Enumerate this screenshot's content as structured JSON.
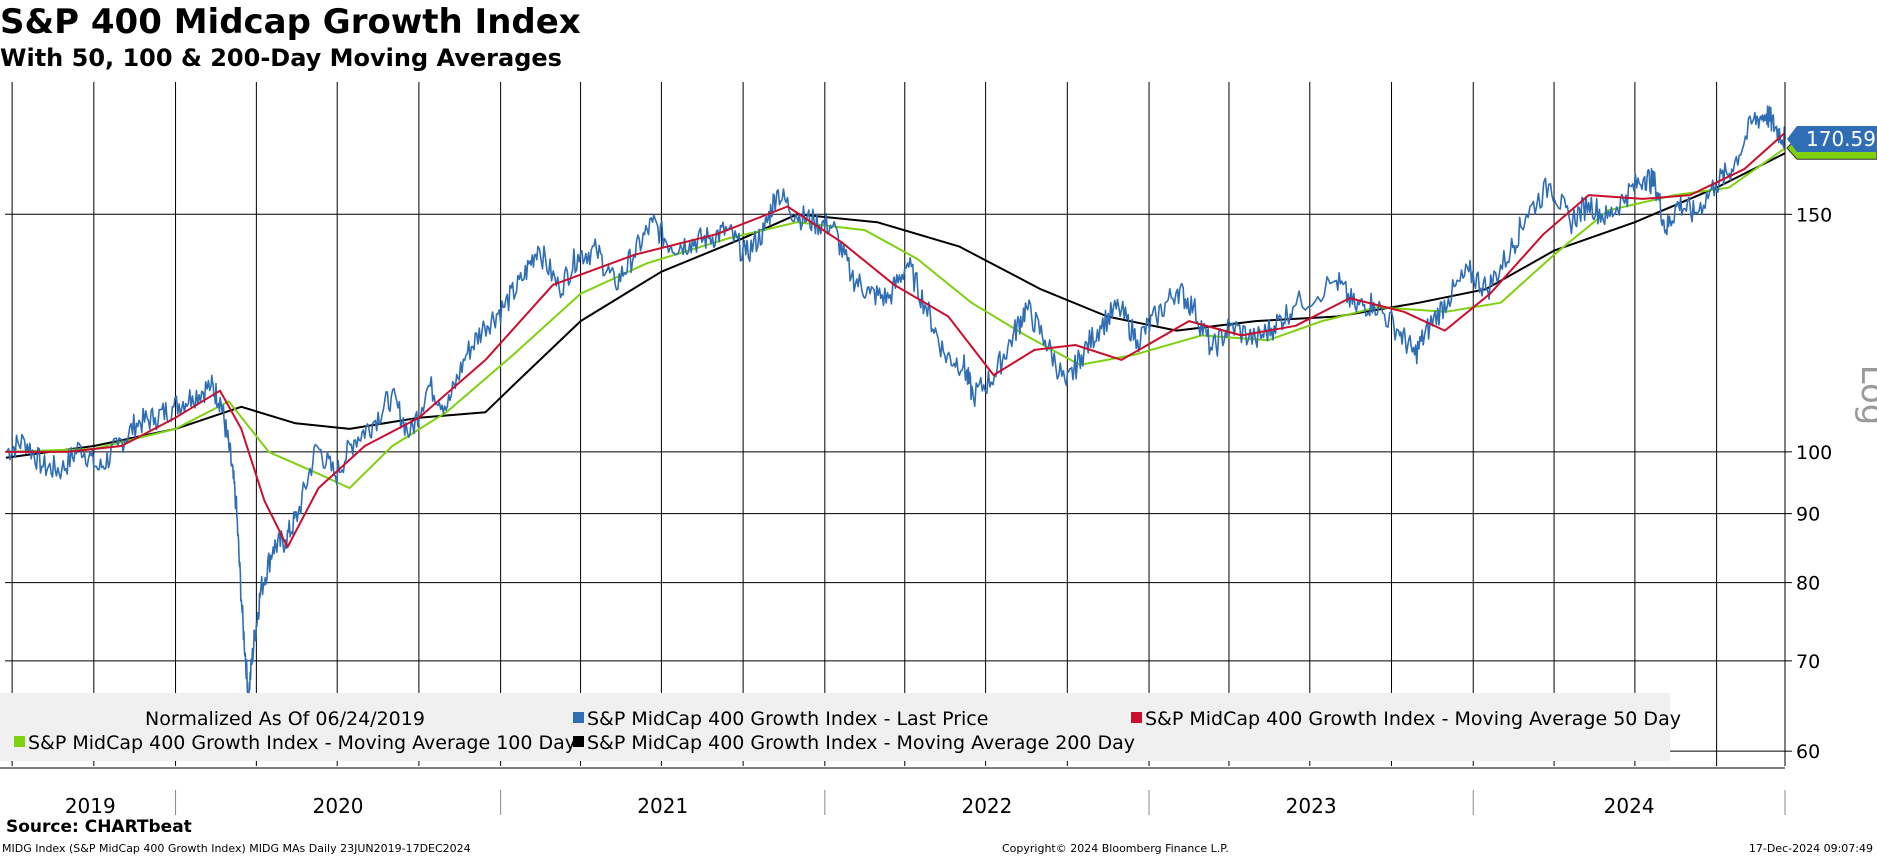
{
  "header": {
    "title": "S&P 400 Midcap Growth Index",
    "subtitle": "With 50, 100 & 200-Day Moving Averages"
  },
  "footer": {
    "source": "Source: CHARTbeat",
    "ticker_info": "MIDG Index (S&P MidCap 400 Growth Index) MIDG MAs  Daily 23JUN2019-17DEC2024",
    "copyright": "Copyright© 2024 Bloomberg Finance L.P.",
    "timestamp": "17-Dec-2024 09:07:49"
  },
  "colors": {
    "last_price": "#2f6eb5",
    "ma50": "#c8102e",
    "ma100": "#7fd10f",
    "ma200": "#000000",
    "last_value_tag": "#2f6eb5",
    "legend_bg": "#f0f0f0",
    "grid": "#000000"
  },
  "chart_data": {
    "type": "line",
    "title": "S&P 400 Midcap Growth Index",
    "subtitle": "With 50, 100 & 200-Day Moving Averages",
    "y_scale": "log",
    "ylabel": "Log",
    "ylim": [
      58.5,
      188
    ],
    "y_ticks": [
      60,
      70,
      80,
      90,
      100,
      150
    ],
    "x_range": [
      "2019-06-23",
      "2024-12-17"
    ],
    "x_tick_labels": [
      "2019",
      "2020",
      "2021",
      "2022",
      "2023",
      "2024"
    ],
    "last_value_label": "170.59",
    "legend": {
      "note": "Normalized As Of 06/24/2019",
      "entries": [
        "S&P MidCap 400 Growth Index - Last Price",
        "S&P MidCap 400 Growth Index - Moving Average 50 Day",
        "S&P MidCap 400 Growth Index - Moving Average 100 Day",
        "S&P MidCap 400 Growth Index - Moving Average 200 Day"
      ]
    },
    "series": [
      {
        "name": "S&P MidCap 400 Growth Index - Last Price",
        "color": "#2f6eb5",
        "points": [
          [
            "2019-06-24",
            100
          ],
          [
            "2019-07-15",
            102
          ],
          [
            "2019-08-05",
            97.5
          ],
          [
            "2019-08-26",
            97
          ],
          [
            "2019-09-16",
            101
          ],
          [
            "2019-10-07",
            97
          ],
          [
            "2019-10-28",
            101
          ],
          [
            "2019-11-18",
            105
          ],
          [
            "2019-12-09",
            106
          ],
          [
            "2019-12-30",
            108
          ],
          [
            "2020-01-20",
            110
          ],
          [
            "2020-02-10",
            112
          ],
          [
            "2020-02-21",
            109
          ],
          [
            "2020-03-02",
            100
          ],
          [
            "2020-03-09",
            92
          ],
          [
            "2020-03-16",
            76
          ],
          [
            "2020-03-23",
            66
          ],
          [
            "2020-03-30",
            73
          ],
          [
            "2020-04-06",
            79
          ],
          [
            "2020-04-20",
            85
          ],
          [
            "2020-05-04",
            86
          ],
          [
            "2020-05-18",
            90
          ],
          [
            "2020-06-08",
            101
          ],
          [
            "2020-06-29",
            96
          ],
          [
            "2020-07-20",
            102
          ],
          [
            "2020-08-10",
            105
          ],
          [
            "2020-08-31",
            110
          ],
          [
            "2020-09-21",
            103
          ],
          [
            "2020-10-12",
            112
          ],
          [
            "2020-11-02",
            108
          ],
          [
            "2020-11-23",
            118
          ],
          [
            "2020-12-14",
            124
          ],
          [
            "2021-01-04",
            128
          ],
          [
            "2021-01-25",
            134
          ],
          [
            "2021-02-12",
            142
          ],
          [
            "2021-03-08",
            132
          ],
          [
            "2021-03-29",
            140
          ],
          [
            "2021-04-19",
            141
          ],
          [
            "2021-05-10",
            133
          ],
          [
            "2021-05-31",
            140
          ],
          [
            "2021-06-21",
            148
          ],
          [
            "2021-07-12",
            142
          ],
          [
            "2021-08-02",
            143
          ],
          [
            "2021-08-23",
            144
          ],
          [
            "2021-09-13",
            146
          ],
          [
            "2021-10-04",
            140
          ],
          [
            "2021-10-25",
            146
          ],
          [
            "2021-11-08",
            156
          ],
          [
            "2021-11-29",
            150
          ],
          [
            "2021-12-20",
            148
          ],
          [
            "2022-01-10",
            147
          ],
          [
            "2022-01-31",
            135
          ],
          [
            "2022-02-21",
            131
          ],
          [
            "2022-03-14",
            130
          ],
          [
            "2022-04-04",
            138
          ],
          [
            "2022-04-25",
            128
          ],
          [
            "2022-05-16",
            118
          ],
          [
            "2022-06-06",
            116
          ],
          [
            "2022-06-17",
            110
          ],
          [
            "2022-07-11",
            114
          ],
          [
            "2022-08-01",
            122
          ],
          [
            "2022-08-16",
            128
          ],
          [
            "2022-09-06",
            121
          ],
          [
            "2022-09-30",
            112
          ],
          [
            "2022-10-17",
            118
          ],
          [
            "2022-11-07",
            124
          ],
          [
            "2022-11-28",
            128
          ],
          [
            "2022-12-19",
            121
          ],
          [
            "2023-01-09",
            126
          ],
          [
            "2023-02-02",
            132
          ],
          [
            "2023-02-20",
            128
          ],
          [
            "2023-03-13",
            119
          ],
          [
            "2023-04-03",
            124
          ],
          [
            "2023-05-01",
            121
          ],
          [
            "2023-05-22",
            124
          ],
          [
            "2023-06-12",
            128
          ],
          [
            "2023-07-31",
            134
          ],
          [
            "2023-08-21",
            128
          ],
          [
            "2023-09-11",
            129
          ],
          [
            "2023-10-09",
            123
          ],
          [
            "2023-10-27",
            118
          ],
          [
            "2023-11-13",
            124
          ],
          [
            "2023-12-04",
            130
          ],
          [
            "2023-12-27",
            136
          ],
          [
            "2024-01-17",
            132
          ],
          [
            "2024-02-12",
            141
          ],
          [
            "2024-03-01",
            150
          ],
          [
            "2024-03-28",
            158
          ],
          [
            "2024-04-19",
            148
          ],
          [
            "2024-05-10",
            153
          ],
          [
            "2024-05-31",
            149
          ],
          [
            "2024-06-21",
            155
          ],
          [
            "2024-07-12",
            160
          ],
          [
            "2024-07-24",
            158
          ],
          [
            "2024-08-05",
            146
          ],
          [
            "2024-08-19",
            153
          ],
          [
            "2024-09-06",
            150
          ],
          [
            "2024-09-30",
            158
          ],
          [
            "2024-10-18",
            162
          ],
          [
            "2024-11-11",
            176
          ],
          [
            "2024-11-26",
            178
          ],
          [
            "2024-12-06",
            174
          ],
          [
            "2024-12-17",
            170.59
          ]
        ]
      },
      {
        "name": "S&P MidCap 400 Growth Index - Moving Average 50 Day",
        "color": "#c8102e",
        "points": [
          [
            "2019-06-24",
            100
          ],
          [
            "2019-09-01",
            100
          ],
          [
            "2019-11-01",
            101
          ],
          [
            "2020-01-01",
            106
          ],
          [
            "2020-02-20",
            111
          ],
          [
            "2020-03-15",
            104
          ],
          [
            "2020-04-10",
            92
          ],
          [
            "2020-05-06",
            85
          ],
          [
            "2020-06-10",
            94
          ],
          [
            "2020-08-01",
            101
          ],
          [
            "2020-10-01",
            106
          ],
          [
            "2020-12-15",
            117
          ],
          [
            "2021-03-01",
            133
          ],
          [
            "2021-06-01",
            140
          ],
          [
            "2021-09-01",
            145
          ],
          [
            "2021-11-20",
            152
          ],
          [
            "2022-01-20",
            143
          ],
          [
            "2022-03-20",
            133
          ],
          [
            "2022-05-20",
            126
          ],
          [
            "2022-07-10",
            114
          ],
          [
            "2022-08-25",
            119
          ],
          [
            "2022-10-10",
            120
          ],
          [
            "2022-12-01",
            117
          ],
          [
            "2023-02-15",
            125
          ],
          [
            "2023-04-15",
            122
          ],
          [
            "2023-06-15",
            124
          ],
          [
            "2023-08-15",
            130
          ],
          [
            "2023-10-15",
            127
          ],
          [
            "2023-11-30",
            123
          ],
          [
            "2024-01-20",
            131
          ],
          [
            "2024-03-20",
            145
          ],
          [
            "2024-05-10",
            155
          ],
          [
            "2024-07-10",
            154
          ],
          [
            "2024-09-01",
            155
          ],
          [
            "2024-11-01",
            162
          ],
          [
            "2024-12-17",
            172.4
          ]
        ]
      },
      {
        "name": "S&P MidCap 400 Growth Index - Moving Average 100 Day",
        "color": "#7fd10f",
        "points": [
          [
            "2019-06-24",
            100
          ],
          [
            "2019-10-01",
            100.5
          ],
          [
            "2020-01-01",
            104
          ],
          [
            "2020-03-01",
            109
          ],
          [
            "2020-04-15",
            100
          ],
          [
            "2020-06-15",
            96
          ],
          [
            "2020-07-15",
            94
          ],
          [
            "2020-09-01",
            101
          ],
          [
            "2020-11-01",
            107
          ],
          [
            "2021-01-15",
            118
          ],
          [
            "2021-04-01",
            131
          ],
          [
            "2021-06-15",
            138
          ],
          [
            "2021-09-15",
            144
          ],
          [
            "2021-12-01",
            148
          ],
          [
            "2022-02-15",
            146
          ],
          [
            "2022-04-15",
            139
          ],
          [
            "2022-06-15",
            129
          ],
          [
            "2022-08-15",
            122
          ],
          [
            "2022-10-15",
            116
          ],
          [
            "2022-12-15",
            118
          ],
          [
            "2023-03-01",
            122
          ],
          [
            "2023-05-15",
            121
          ],
          [
            "2023-07-15",
            125
          ],
          [
            "2023-09-15",
            128
          ],
          [
            "2023-12-01",
            127
          ],
          [
            "2024-02-01",
            129
          ],
          [
            "2024-04-01",
            140
          ],
          [
            "2024-06-01",
            151
          ],
          [
            "2024-08-15",
            155
          ],
          [
            "2024-10-15",
            157
          ],
          [
            "2024-12-17",
            167.9
          ]
        ]
      },
      {
        "name": "S&P MidCap 400 Growth Index - Moving Average 200 Day",
        "color": "#000000",
        "points": [
          [
            "2019-06-24",
            99
          ],
          [
            "2019-10-01",
            101
          ],
          [
            "2020-01-01",
            104
          ],
          [
            "2020-03-15",
            108
          ],
          [
            "2020-05-15",
            105
          ],
          [
            "2020-07-15",
            104
          ],
          [
            "2020-10-01",
            106
          ],
          [
            "2020-12-15",
            107
          ],
          [
            "2021-01-15",
            112
          ],
          [
            "2021-04-01",
            125
          ],
          [
            "2021-07-01",
            136
          ],
          [
            "2021-10-01",
            144
          ],
          [
            "2021-12-01",
            150
          ],
          [
            "2022-03-01",
            148
          ],
          [
            "2022-06-01",
            142
          ],
          [
            "2022-09-01",
            132
          ],
          [
            "2022-11-15",
            126
          ],
          [
            "2023-02-01",
            123
          ],
          [
            "2023-05-01",
            125
          ],
          [
            "2023-08-01",
            126
          ],
          [
            "2023-11-01",
            129
          ],
          [
            "2024-01-15",
            132
          ],
          [
            "2024-04-01",
            141
          ],
          [
            "2024-07-01",
            148
          ],
          [
            "2024-10-01",
            157
          ],
          [
            "2024-12-17",
            166.5
          ]
        ]
      }
    ]
  }
}
